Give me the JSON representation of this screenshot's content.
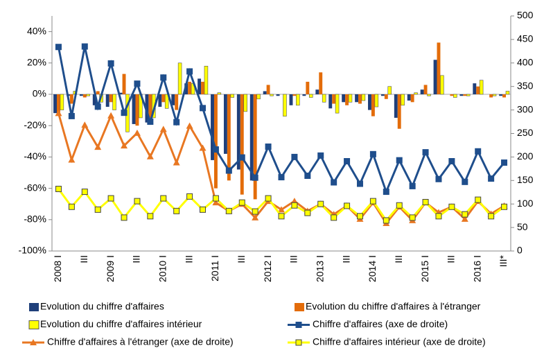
{
  "chart_data": {
    "type": "combo",
    "categories": [
      "2008 I",
      null,
      "III",
      null,
      "2009 I",
      null,
      "III",
      null,
      "2010 I",
      null,
      "III",
      null,
      "2011 I",
      null,
      "III",
      null,
      "2012 I",
      null,
      "III",
      null,
      "2013 I",
      null,
      "III",
      null,
      "2014 I",
      null,
      "III",
      null,
      "2015 I",
      null,
      "III",
      null,
      "2016 I",
      null,
      "III*"
    ],
    "ylim": [
      -100,
      50
    ],
    "yticks": [
      {
        "value": -100,
        "label": "-100%"
      },
      {
        "value": -80,
        "label": "-80%"
      },
      {
        "value": -60,
        "label": "-60%"
      },
      {
        "value": -40,
        "label": "-40%"
      },
      {
        "value": -20,
        "label": "-20%"
      },
      {
        "value": 0,
        "label": "0%"
      },
      {
        "value": 20,
        "label": "20%"
      },
      {
        "value": 40,
        "label": "40%"
      }
    ],
    "y2lim": [
      0,
      500
    ],
    "y2ticks": [
      0,
      50,
      100,
      150,
      200,
      250,
      300,
      350,
      400,
      450,
      500
    ],
    "series": [
      {
        "name": "Evolution du chiffre d'affaires",
        "kind": "bar",
        "color": "#1f3f7a",
        "values": [
          -12,
          -1,
          -1,
          -7,
          -8,
          1,
          -19,
          -18,
          -8,
          -7,
          7,
          10,
          -42,
          -38,
          -48,
          -55,
          2,
          -1,
          -7,
          -1,
          3,
          -9,
          -5,
          -5,
          -10,
          -1,
          -15,
          -4,
          3,
          22,
          0,
          -1,
          7,
          0,
          -1
        ]
      },
      {
        "name": "Evolution du chiffre d'affaires à l'étranger",
        "kind": "bar",
        "color": "#e36c0a",
        "values": [
          -13,
          -6,
          -2,
          2,
          -5,
          13,
          -20,
          -15,
          -5,
          -10,
          8,
          8,
          -60,
          -55,
          -64,
          -67,
          6,
          0,
          -1,
          8,
          14,
          -6,
          -7,
          -6,
          -14,
          -3,
          -22,
          -5,
          6,
          33,
          -1,
          -1,
          5,
          -2,
          -2
        ]
      },
      {
        "name": "Evolution du chiffre d'affaires intérieur",
        "kind": "bar",
        "color": "#ffff00",
        "values": [
          -10,
          2,
          -1,
          -5,
          -10,
          -24,
          -15,
          -15,
          -9,
          20,
          7,
          18,
          1,
          -2,
          -11,
          -3,
          -1,
          -14,
          -7,
          -2,
          -5,
          -12,
          -5,
          -4,
          -8,
          5,
          -7,
          1,
          -1,
          12,
          -2,
          -1,
          9,
          -1,
          2
        ]
      },
      {
        "name": "Chiffre d'affaires (axe de droite)",
        "kind": "line",
        "marker": "square",
        "axis": "y2",
        "color": "#1f4e8c",
        "values": [
          434,
          287,
          435,
          307,
          399,
          294,
          356,
          275,
          369,
          274,
          382,
          304,
          216,
          171,
          199,
          156,
          222,
          157,
          200,
          160,
          203,
          146,
          191,
          143,
          206,
          126,
          193,
          138,
          210,
          153,
          191,
          147,
          212,
          154,
          188
        ]
      },
      {
        "name": "Chiffre d'affaires à l'étranger (axe de droite)",
        "kind": "line",
        "marker": "triangle",
        "axis": "y2",
        "color": "#e87722",
        "values": [
          293,
          194,
          268,
          221,
          288,
          224,
          251,
          201,
          259,
          188,
          266,
          219,
          103,
          85,
          100,
          71,
          106,
          88,
          106,
          85,
          100,
          78,
          96,
          68,
          103,
          59,
          94,
          65,
          103,
          82,
          94,
          68,
          106,
          79,
          96
        ]
      },
      {
        "name": "Chiffre d'affaires intérieur (axe de droite)",
        "kind": "line",
        "marker": "square",
        "axis": "y2",
        "color": "#ffff00",
        "values": [
          132,
          94,
          126,
          88,
          112,
          71,
          106,
          74,
          112,
          85,
          116,
          88,
          112,
          85,
          103,
          84,
          112,
          74,
          97,
          81,
          100,
          71,
          96,
          74,
          106,
          65,
          97,
          71,
          104,
          74,
          94,
          78,
          109,
          74,
          94
        ]
      }
    ]
  }
}
